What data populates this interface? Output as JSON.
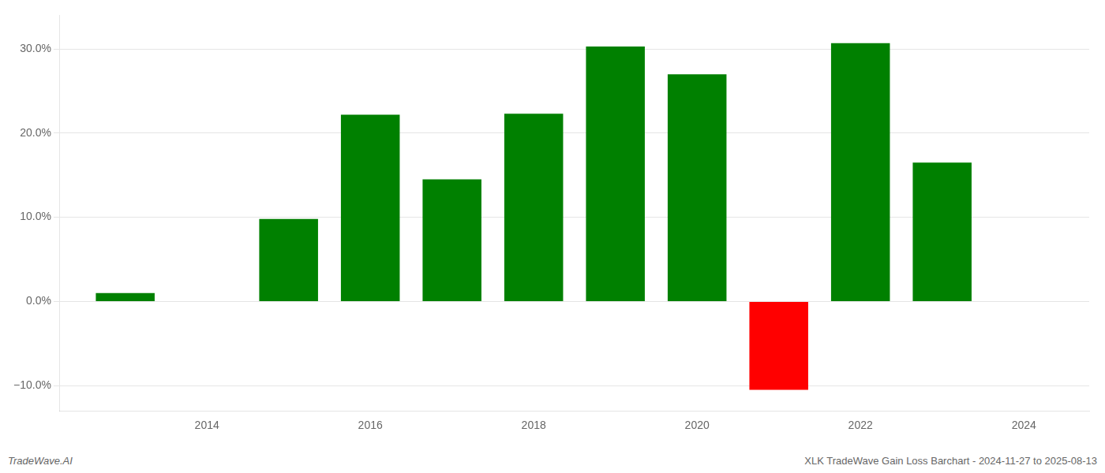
{
  "chart_data": {
    "type": "bar",
    "x": [
      2013,
      2015,
      2016,
      2017,
      2018,
      2019,
      2020,
      2021,
      2022,
      2023
    ],
    "values": [
      1.0,
      9.8,
      22.2,
      14.5,
      22.3,
      30.3,
      27.0,
      -10.5,
      30.7,
      16.5
    ],
    "colors": [
      "#008000",
      "#008000",
      "#008000",
      "#008000",
      "#008000",
      "#008000",
      "#008000",
      "#ff0000",
      "#008000",
      "#008000"
    ],
    "xlim": [
      2012.2,
      2024.8
    ],
    "xticks": [
      2014,
      2016,
      2018,
      2020,
      2022,
      2024
    ],
    "ylim": [
      -13,
      34
    ],
    "yticks": [
      {
        "value": -10.0,
        "label": "−10.0%"
      },
      {
        "value": 0.0,
        "label": "0.0%"
      },
      {
        "value": 10.0,
        "label": "10.0%"
      },
      {
        "value": 20.0,
        "label": "20.0%"
      },
      {
        "value": 30.0,
        "label": "30.0%"
      }
    ],
    "grid": true,
    "annotations": [
      "TradeWave.AI",
      "XLK TradeWave Gain Loss Barchart - 2024-11-27 to 2025-08-13"
    ]
  }
}
